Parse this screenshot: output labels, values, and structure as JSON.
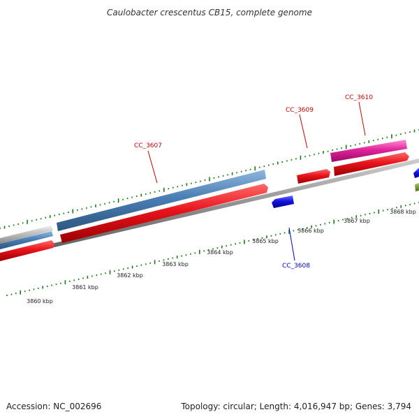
{
  "title": "Caulobacter crescentus CB15, complete genome",
  "footer": {
    "accession": "Accession: NC_002696",
    "stats": "Topology: circular; Length: 4,016,947 bp; Genes: 3,794"
  },
  "colors": {
    "forward_cds": "#e8141c",
    "reverse_cds": "#1414e0",
    "blue_feature": "#4a7fb5",
    "pink_feature": "#e0249a",
    "grey_feature": "#bdbdbd",
    "green_feature": "#6b8e23",
    "backbone": "#8c8c8c",
    "tick": "#1a7a1a",
    "forward_label": "#cc0000",
    "reverse_label": "#0000cc"
  },
  "scale_labels": [
    "3860 kbp",
    "3861 kbp",
    "3862 kbp",
    "3863 kbp",
    "3864 kbp",
    "3865 kbp",
    "3866 kbp",
    "3867 kbp",
    "3868 kbp"
  ],
  "genes": [
    {
      "name": "CC_3607",
      "strand": "forward"
    },
    {
      "name": "CC_3608",
      "strand": "reverse"
    },
    {
      "name": "CC_3609",
      "strand": "forward"
    },
    {
      "name": "CC_3610",
      "strand": "forward"
    }
  ]
}
